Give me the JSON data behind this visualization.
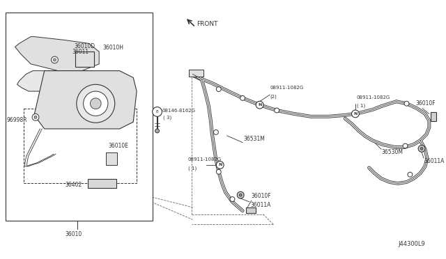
{
  "fig_width": 6.4,
  "fig_height": 3.72,
  "dpi": 100,
  "bg_color": "#ffffff",
  "line_color": "#333333",
  "text_color": "#333333",
  "labels": {
    "36010": "36010",
    "36011": "36011",
    "36010D": "36010D",
    "36010H": "36010H",
    "96998R": "96998R",
    "36010E": "36010E",
    "36402": "36402",
    "08146": "08146-8162G",
    "08146_qty": "( 3)",
    "36531M": "36531M",
    "36530M": "36530M",
    "08911_2": "08911-1082G",
    "08911_2_qty": "(2)",
    "08911_1a": "08911-1082G",
    "08911_1a_qty": "( 1)",
    "08911_1b": "08911-1082G",
    "08911_1b_qty": "( 1)",
    "36010F_top": "36010F",
    "36010F_bot": "36010F",
    "36011A_top": "36011A",
    "36011A_bot": "36011A",
    "front": "FRONT",
    "diagram_code": "J44300L9"
  }
}
